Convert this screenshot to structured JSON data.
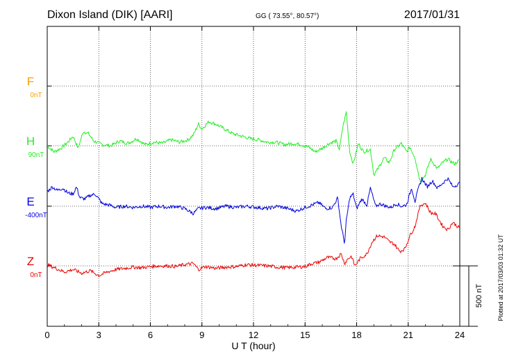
{
  "header": {
    "station": "Dixon Island (DIK)  [AARI]",
    "coords": "GG ( 73.55°,  80.57°)",
    "date": "2017/01/31"
  },
  "footer": {
    "xlabel": "U T (hour)",
    "plotted": "Plotted at 2017/03/03 01:32 UT",
    "scale_label": "500 nT"
  },
  "chart_data": {
    "type": "line",
    "x_range": [
      0,
      24
    ],
    "x_ticks": [
      "0",
      "3",
      "6",
      "9",
      "12",
      "15",
      "18",
      "21",
      "24"
    ],
    "grid": true,
    "scale_bar_nT": 500,
    "series": [
      {
        "name": "F",
        "baseline": "0nT",
        "color": "#f5a000",
        "points": []
      },
      {
        "name": "H",
        "baseline": "90nT",
        "color": "#22ee22",
        "points": [
          [
            0,
            90
          ],
          [
            0.4,
            40
          ],
          [
            0.8,
            70
          ],
          [
            1.2,
            120
          ],
          [
            1.5,
            170
          ],
          [
            1.8,
            70
          ],
          [
            2.1,
            210
          ],
          [
            2.4,
            190
          ],
          [
            2.7,
            130
          ],
          [
            3.2,
            100
          ],
          [
            3.7,
            90
          ],
          [
            4.2,
            130
          ],
          [
            4.7,
            110
          ],
          [
            5.2,
            150
          ],
          [
            5.7,
            100
          ],
          [
            6.2,
            120
          ],
          [
            6.7,
            110
          ],
          [
            7.2,
            140
          ],
          [
            7.7,
            120
          ],
          [
            8.2,
            140
          ],
          [
            8.5,
            180
          ],
          [
            8.8,
            270
          ],
          [
            9.0,
            230
          ],
          [
            9.4,
            290
          ],
          [
            9.8,
            270
          ],
          [
            10.3,
            230
          ],
          [
            10.8,
            190
          ],
          [
            11.3,
            170
          ],
          [
            11.8,
            150
          ],
          [
            12.3,
            140
          ],
          [
            12.8,
            120
          ],
          [
            13.3,
            120
          ],
          [
            13.8,
            100
          ],
          [
            14.3,
            110
          ],
          [
            14.8,
            100
          ],
          [
            15.2,
            80
          ],
          [
            15.6,
            40
          ],
          [
            16.0,
            70
          ],
          [
            16.4,
            110
          ],
          [
            16.8,
            130
          ],
          [
            17.0,
            60
          ],
          [
            17.2,
            250
          ],
          [
            17.4,
            370
          ],
          [
            17.6,
            40
          ],
          [
            17.8,
            -60
          ],
          [
            18.1,
            110
          ],
          [
            18.4,
            40
          ],
          [
            18.8,
            60
          ],
          [
            19.0,
            -150
          ],
          [
            19.2,
            -110
          ],
          [
            19.6,
            -10
          ],
          [
            19.9,
            -50
          ],
          [
            20.2,
            60
          ],
          [
            20.6,
            110
          ],
          [
            20.9,
            40
          ],
          [
            21.1,
            80
          ],
          [
            21.4,
            -10
          ],
          [
            21.7,
            -210
          ],
          [
            22.0,
            -150
          ],
          [
            22.3,
            -20
          ],
          [
            22.7,
            -100
          ],
          [
            23.0,
            -50
          ],
          [
            23.3,
            -20
          ],
          [
            23.7,
            -60
          ],
          [
            24.0,
            -30
          ]
        ]
      },
      {
        "name": "E",
        "baseline": "-400nT",
        "color": "#0000dd",
        "points": [
          [
            0,
            -280
          ],
          [
            0.3,
            -240
          ],
          [
            0.6,
            -270
          ],
          [
            0.9,
            -250
          ],
          [
            1.2,
            -290
          ],
          [
            1.5,
            -300
          ],
          [
            1.7,
            -240
          ],
          [
            1.9,
            -330
          ],
          [
            2.2,
            -340
          ],
          [
            2.5,
            -310
          ],
          [
            2.8,
            -300
          ],
          [
            3.2,
            -380
          ],
          [
            3.6,
            -390
          ],
          [
            4.0,
            -410
          ],
          [
            4.5,
            -400
          ],
          [
            5.0,
            -410
          ],
          [
            5.5,
            -400
          ],
          [
            6.0,
            -410
          ],
          [
            6.5,
            -400
          ],
          [
            7.0,
            -410
          ],
          [
            7.5,
            -400
          ],
          [
            8.0,
            -420
          ],
          [
            8.5,
            -460
          ],
          [
            8.8,
            -420
          ],
          [
            9.2,
            -410
          ],
          [
            9.8,
            -420
          ],
          [
            10.4,
            -400
          ],
          [
            11.0,
            -410
          ],
          [
            11.6,
            -400
          ],
          [
            12.2,
            -410
          ],
          [
            12.8,
            -420
          ],
          [
            13.4,
            -400
          ],
          [
            14.0,
            -420
          ],
          [
            14.5,
            -440
          ],
          [
            15.0,
            -410
          ],
          [
            15.4,
            -390
          ],
          [
            15.8,
            -370
          ],
          [
            16.2,
            -420
          ],
          [
            16.6,
            -410
          ],
          [
            16.9,
            -330
          ],
          [
            17.1,
            -560
          ],
          [
            17.3,
            -710
          ],
          [
            17.4,
            -520
          ],
          [
            17.6,
            -330
          ],
          [
            17.8,
            -300
          ],
          [
            18.0,
            -420
          ],
          [
            18.3,
            -340
          ],
          [
            18.6,
            -390
          ],
          [
            18.8,
            -250
          ],
          [
            19.1,
            -400
          ],
          [
            19.4,
            -380
          ],
          [
            19.7,
            -400
          ],
          [
            20.0,
            -410
          ],
          [
            20.3,
            -380
          ],
          [
            20.6,
            -400
          ],
          [
            20.9,
            -390
          ],
          [
            21.2,
            -250
          ],
          [
            21.4,
            -360
          ],
          [
            21.6,
            -250
          ],
          [
            21.8,
            -170
          ],
          [
            22.1,
            -240
          ],
          [
            22.4,
            -190
          ],
          [
            22.7,
            -250
          ],
          [
            23.0,
            -210
          ],
          [
            23.3,
            -170
          ],
          [
            23.6,
            -240
          ],
          [
            24.0,
            -210
          ]
        ]
      },
      {
        "name": "Z",
        "baseline": "0nT",
        "color": "#ee0000",
        "points": [
          [
            0,
            10
          ],
          [
            0.5,
            -20
          ],
          [
            1.0,
            -50
          ],
          [
            1.5,
            -30
          ],
          [
            2.0,
            -60
          ],
          [
            2.5,
            -40
          ],
          [
            3.0,
            -80
          ],
          [
            3.5,
            -50
          ],
          [
            4.0,
            -30
          ],
          [
            4.5,
            -20
          ],
          [
            5.0,
            -10
          ],
          [
            5.5,
            -15
          ],
          [
            6.0,
            -5
          ],
          [
            6.5,
            0
          ],
          [
            7.0,
            0
          ],
          [
            7.5,
            -5
          ],
          [
            8.0,
            10
          ],
          [
            8.5,
            20
          ],
          [
            8.8,
            -30
          ],
          [
            9.2,
            -5
          ],
          [
            9.8,
            -20
          ],
          [
            10.4,
            -10
          ],
          [
            11.0,
            -5
          ],
          [
            11.6,
            10
          ],
          [
            12.2,
            5
          ],
          [
            12.8,
            0
          ],
          [
            13.4,
            -10
          ],
          [
            14.0,
            -15
          ],
          [
            14.5,
            -10
          ],
          [
            15.0,
            -5
          ],
          [
            15.4,
            20
          ],
          [
            15.8,
            30
          ],
          [
            16.3,
            70
          ],
          [
            16.8,
            60
          ],
          [
            17.1,
            100
          ],
          [
            17.3,
            20
          ],
          [
            17.5,
            60
          ],
          [
            17.7,
            80
          ],
          [
            17.9,
            0
          ],
          [
            18.2,
            60
          ],
          [
            18.6,
            100
          ],
          [
            18.9,
            200
          ],
          [
            19.2,
            250
          ],
          [
            19.6,
            240
          ],
          [
            19.9,
            200
          ],
          [
            20.2,
            180
          ],
          [
            20.5,
            120
          ],
          [
            20.8,
            140
          ],
          [
            21.1,
            250
          ],
          [
            21.4,
            330
          ],
          [
            21.7,
            500
          ],
          [
            22.0,
            520
          ],
          [
            22.3,
            440
          ],
          [
            22.6,
            430
          ],
          [
            23.0,
            330
          ],
          [
            23.3,
            300
          ],
          [
            23.6,
            360
          ],
          [
            24.0,
            310
          ]
        ]
      }
    ]
  }
}
